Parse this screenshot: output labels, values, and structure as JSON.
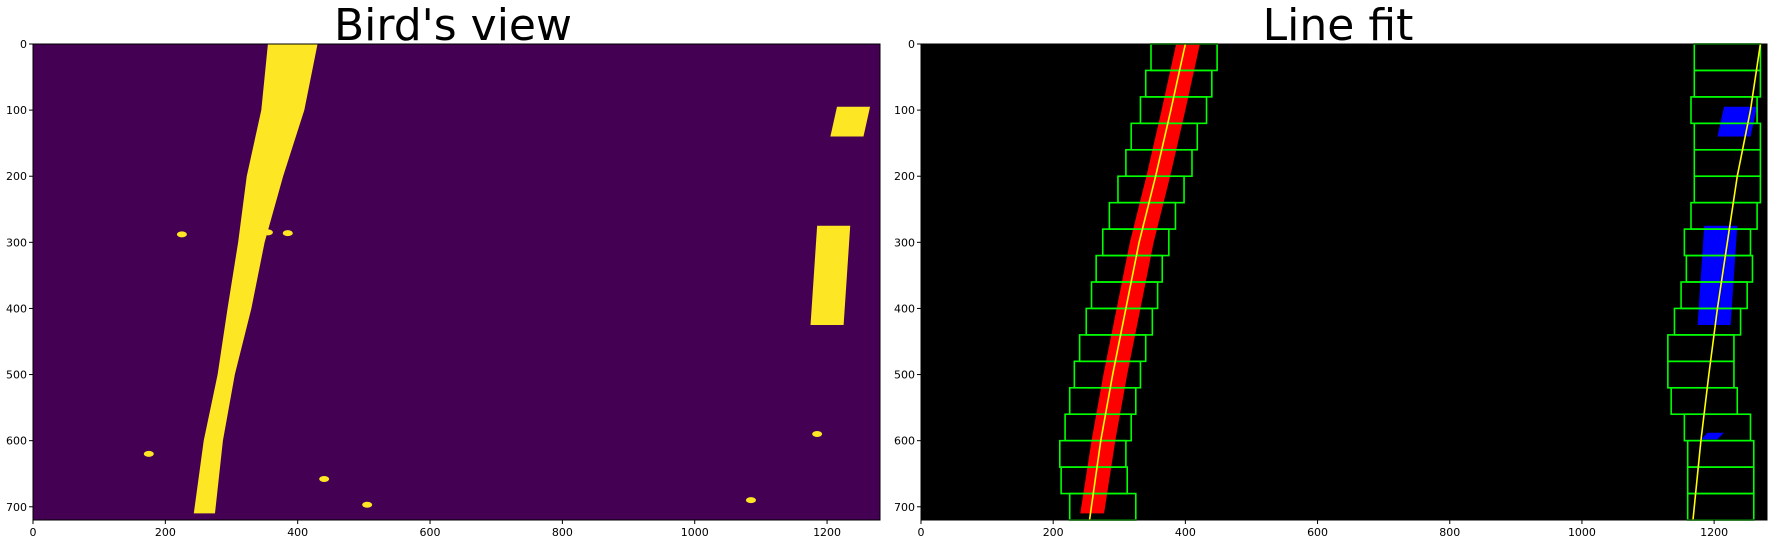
{
  "chart_data": [
    {
      "type": "image",
      "title": "Bird's view",
      "xlim": [
        0,
        1280
      ],
      "ylim": [
        720,
        0
      ],
      "xticks": [
        0,
        200,
        400,
        600,
        800,
        1000,
        1200
      ],
      "yticks": [
        0,
        100,
        200,
        300,
        400,
        500,
        600,
        700
      ],
      "background_color": "#440154",
      "foreground_color": "#fde725",
      "left_lane_pixels": {
        "y": [
          0,
          100,
          200,
          300,
          400,
          500,
          600,
          710
        ],
        "x_left": [
          355,
          345,
          323,
          310,
          294,
          279,
          258,
          243
        ],
        "x_right": [
          430,
          410,
          378,
          350,
          330,
          305,
          287,
          275
        ]
      },
      "right_lane_pixels": [
        {
          "x": [
            1205,
            1265
          ],
          "y": [
            95,
            140
          ]
        },
        {
          "x": [
            1175,
            1235
          ],
          "y": [
            275,
            425
          ]
        }
      ],
      "noise_blobs": [
        {
          "x": 225,
          "y": 288
        },
        {
          "x": 385,
          "y": 286
        },
        {
          "x": 355,
          "y": 285
        },
        {
          "x": 1185,
          "y": 590
        },
        {
          "x": 175,
          "y": 620
        },
        {
          "x": 440,
          "y": 658
        },
        {
          "x": 505,
          "y": 697
        },
        {
          "x": 1085,
          "y": 690
        }
      ]
    },
    {
      "type": "image",
      "title": "Line fit",
      "xlim": [
        0,
        1280
      ],
      "ylim": [
        720,
        0
      ],
      "xticks": [
        0,
        200,
        400,
        600,
        800,
        1000,
        1200
      ],
      "yticks": [
        0,
        100,
        200,
        300,
        400,
        500,
        600,
        700
      ],
      "background_color": "#000000",
      "left_pixel_color": "#ff0000",
      "right_pixel_color": "#0000ff",
      "window_color": "#00ff00",
      "fit_color": "#ffff00",
      "left_windows_x": [
        [
          225,
          325
        ],
        [
          212,
          312
        ],
        [
          210,
          310
        ],
        [
          218,
          318
        ],
        [
          225,
          325
        ],
        [
          232,
          332
        ],
        [
          240,
          340
        ],
        [
          250,
          350
        ],
        [
          258,
          358
        ],
        [
          265,
          365
        ],
        [
          275,
          375
        ],
        [
          285,
          385
        ],
        [
          298,
          398
        ],
        [
          310,
          410
        ],
        [
          318,
          418
        ],
        [
          332,
          432
        ],
        [
          340,
          440
        ],
        [
          348,
          448
        ]
      ],
      "right_windows_x": [
        [
          1160,
          1260
        ],
        [
          1160,
          1260
        ],
        [
          1160,
          1260
        ],
        [
          1155,
          1255
        ],
        [
          1135,
          1235
        ],
        [
          1130,
          1230
        ],
        [
          1130,
          1230
        ],
        [
          1140,
          1240
        ],
        [
          1150,
          1250
        ],
        [
          1158,
          1258
        ],
        [
          1155,
          1255
        ],
        [
          1165,
          1265
        ],
        [
          1170,
          1270
        ],
        [
          1170,
          1270
        ],
        [
          1170,
          1270
        ],
        [
          1165,
          1265
        ],
        [
          1170,
          1270
        ],
        [
          1170,
          1270
        ]
      ],
      "left_fit": {
        "y": [
          720,
          600,
          500,
          400,
          300,
          200,
          100,
          0
        ],
        "x": [
          255,
          272,
          290,
          310,
          330,
          355,
          378,
          400
        ]
      },
      "right_fit": {
        "y": [
          720,
          600,
          500,
          400,
          300,
          200,
          100,
          0
        ],
        "x": [
          1168,
          1180,
          1192,
          1205,
          1220,
          1235,
          1255,
          1270
        ]
      }
    }
  ]
}
